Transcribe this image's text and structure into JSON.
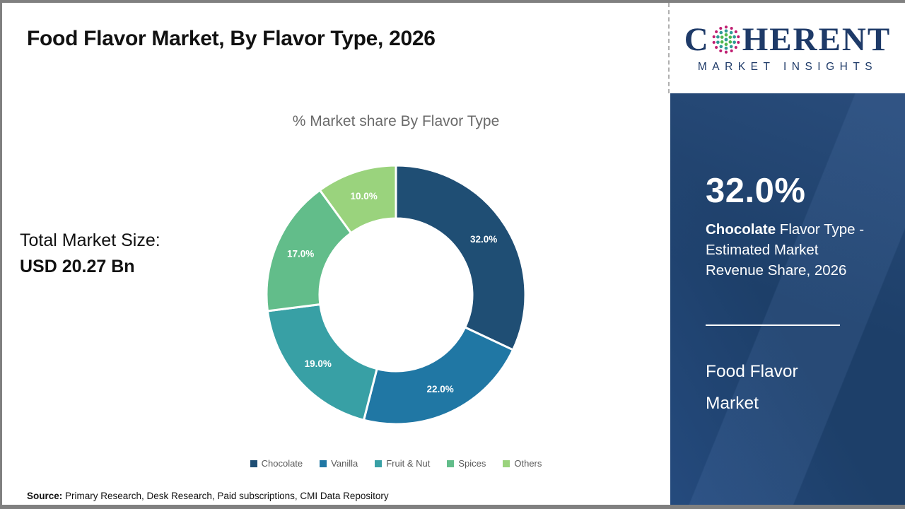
{
  "page": {
    "title": "Food Flavor Market, By Flavor Type, 2026",
    "source_label": "Source:",
    "source_text": " Primary Research, Desk Research, Paid subscriptions, CMI Data Repository"
  },
  "left_stats": {
    "total_label": "Total Market Size:",
    "total_value": "USD 20.27 Bn"
  },
  "chart_data": {
    "type": "pie",
    "donut": true,
    "title": "% Market share By Flavor Type",
    "categories": [
      "Chocolate",
      "Vanilla",
      "Fruit & Nut",
      "Spices",
      "Others"
    ],
    "values": [
      32.0,
      22.0,
      19.0,
      17.0,
      10.0
    ],
    "colors": [
      "#1f4e74",
      "#2077a4",
      "#38a0a5",
      "#62bd8a",
      "#9ad37d"
    ],
    "label_format": "one_decimal_percent",
    "legend_position": "bottom",
    "start_angle_deg": 0,
    "direction": "clockwise"
  },
  "logo": {
    "brand_left": "C",
    "brand_right": "HERENT",
    "brand_sub": "MARKET INSIGHTS",
    "navy": "#1e3a68",
    "dot_teal": "#2f9b95",
    "dot_green": "#52b84d",
    "dot_magenta": "#bf1e71"
  },
  "panel": {
    "highlight_value": "32.0%",
    "highlight_bold": "Chocolate",
    "highlight_rest": " Flavor Type - Estimated Market Revenue Share, 2026",
    "panel_title": "Food Flavor Market",
    "bg_color": "#1d3f69"
  }
}
